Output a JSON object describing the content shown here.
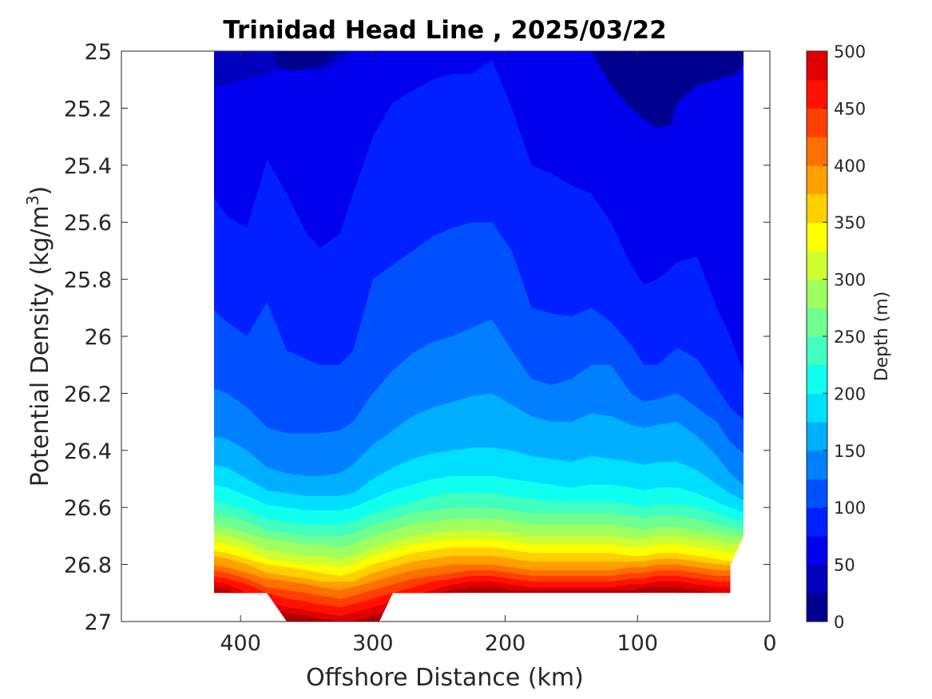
{
  "chart_data": {
    "type": "contour",
    "title": "Trinidad Head Line , 2025/03/22",
    "xlabel": "Offshore Distance (km)",
    "ylabel_main": "Potential Density (kg/m",
    "ylabel_sup": "3",
    "ylabel_end": ")",
    "colorbar_label": "Depth (m)",
    "x_ticks": [
      "400",
      "300",
      "200",
      "100",
      "0"
    ],
    "x_tick_values": [
      400,
      300,
      200,
      100,
      0
    ],
    "y_ticks": [
      "25",
      "25.2",
      "25.4",
      "25.6",
      "25.8",
      "26",
      "26.2",
      "26.4",
      "26.6",
      "26.8",
      "27"
    ],
    "y_tick_values": [
      25,
      25.2,
      25.4,
      25.6,
      25.8,
      26,
      26.2,
      26.4,
      26.6,
      26.8,
      27
    ],
    "x_range": [
      490,
      0
    ],
    "x_reversed": true,
    "y_range": [
      25,
      27
    ],
    "y_reversed": true,
    "data_x_extent": [
      420,
      20
    ],
    "colorbar_ticks": [
      "0",
      "50",
      "100",
      "150",
      "200",
      "250",
      "300",
      "350",
      "400",
      "450",
      "500"
    ],
    "colorbar_tick_values": [
      0,
      50,
      100,
      150,
      200,
      250,
      300,
      350,
      400,
      450,
      500
    ],
    "level_step": 25,
    "levels_colors": [
      "#00008f",
      "#0000bf",
      "#0000ef",
      "#0020ff",
      "#0050ff",
      "#0080ff",
      "#00afff",
      "#00dfff",
      "#10ffef",
      "#40ffbf",
      "#70ff8f",
      "#9fff60",
      "#cfff30",
      "#ffff00",
      "#ffcf00",
      "#ff9f00",
      "#ff7000",
      "#ff4000",
      "#ff1000",
      "#df0000",
      "#af0000"
    ],
    "x_stations": [
      420,
      410,
      395,
      380,
      365,
      350,
      340,
      325,
      315,
      300,
      285,
      270,
      255,
      240,
      225,
      210,
      195,
      180,
      165,
      150,
      135,
      120,
      105,
      95,
      85,
      70,
      55,
      40,
      30,
      20
    ],
    "isopycnal_depths": [
      {
        "x": 420,
        "depths": [
          25.13,
          25.5,
          25.9,
          26.18,
          26.35,
          26.45,
          26.52,
          26.58,
          26.62,
          26.66,
          26.69,
          26.72,
          26.75,
          26.77,
          26.8,
          26.82,
          26.84,
          26.86,
          26.88,
          26.9
        ]
      },
      {
        "x": 410,
        "depths": [
          25.12,
          25.58,
          25.95,
          26.2,
          26.36,
          26.46,
          26.53,
          26.59,
          26.63,
          26.67,
          26.7,
          26.73,
          26.76,
          26.78,
          26.81,
          26.83,
          26.85,
          26.87,
          26.89,
          26.91
        ]
      },
      {
        "x": 395,
        "depths": [
          25.1,
          25.62,
          26.0,
          26.25,
          26.4,
          26.5,
          26.56,
          26.61,
          26.65,
          26.69,
          26.72,
          26.75,
          26.78,
          26.8,
          26.83,
          26.85,
          26.87,
          26.9,
          26.92,
          26.94
        ]
      },
      {
        "x": 380,
        "depths": [
          25.08,
          25.38,
          25.88,
          26.32,
          26.46,
          26.54,
          26.59,
          26.64,
          26.68,
          26.71,
          26.75,
          26.78,
          26.8,
          26.83,
          26.85,
          26.88,
          26.9,
          26.93,
          26.95,
          26.98
        ]
      },
      {
        "x": 365,
        "depths": [
          25.04,
          25.5,
          26.05,
          26.34,
          26.48,
          26.55,
          26.6,
          26.65,
          26.69,
          26.72,
          26.76,
          26.79,
          26.81,
          26.84,
          26.86,
          26.89,
          26.92,
          26.95,
          26.97,
          27.0
        ]
      },
      {
        "x": 350,
        "depths": [
          25.06,
          25.64,
          26.08,
          26.34,
          26.49,
          26.56,
          26.61,
          26.66,
          26.7,
          26.73,
          26.77,
          26.8,
          26.82,
          26.85,
          26.87,
          26.9,
          26.93,
          26.96,
          26.98,
          27.0
        ]
      },
      {
        "x": 340,
        "depths": [
          25.07,
          25.69,
          26.1,
          26.34,
          26.49,
          26.56,
          26.61,
          26.66,
          26.7,
          26.73,
          26.77,
          26.8,
          26.83,
          26.86,
          26.88,
          26.91,
          26.94,
          26.97,
          26.99,
          27.0
        ]
      },
      {
        "x": 325,
        "depths": [
          25.04,
          25.64,
          26.1,
          26.33,
          26.48,
          26.56,
          26.61,
          26.66,
          26.7,
          26.74,
          26.78,
          26.81,
          26.84,
          26.86,
          26.89,
          26.92,
          26.95,
          26.98,
          27.0,
          27.0
        ]
      },
      {
        "x": 315,
        "depths": [
          25.0,
          25.5,
          26.05,
          26.3,
          26.45,
          26.55,
          26.6,
          26.65,
          26.69,
          26.73,
          26.77,
          26.8,
          26.83,
          26.86,
          26.88,
          26.91,
          26.94,
          26.97,
          27.0,
          27.0
        ]
      },
      {
        "x": 300,
        "depths": [
          25.0,
          25.3,
          25.8,
          26.2,
          26.38,
          26.5,
          26.57,
          26.62,
          26.66,
          26.7,
          26.74,
          26.77,
          26.8,
          26.83,
          26.86,
          26.89,
          26.92,
          26.95,
          26.98,
          27.0
        ]
      },
      {
        "x": 285,
        "depths": [
          25.0,
          25.18,
          25.75,
          26.12,
          26.33,
          26.46,
          26.54,
          26.6,
          26.64,
          26.68,
          26.72,
          26.75,
          26.78,
          26.81,
          26.84,
          26.87,
          26.9,
          26.93,
          26.96,
          26.98
        ]
      },
      {
        "x": 270,
        "depths": [
          25.0,
          25.14,
          25.7,
          26.06,
          26.28,
          26.43,
          26.52,
          26.58,
          26.62,
          26.66,
          26.7,
          26.73,
          26.76,
          26.79,
          26.82,
          26.85,
          26.88,
          26.91,
          26.93,
          26.95
        ]
      },
      {
        "x": 255,
        "depths": [
          25.0,
          25.1,
          25.65,
          26.02,
          26.25,
          26.41,
          26.5,
          26.56,
          26.61,
          26.65,
          26.69,
          26.72,
          26.75,
          26.78,
          26.81,
          26.84,
          26.86,
          26.89,
          26.9,
          26.92
        ]
      },
      {
        "x": 240,
        "depths": [
          25.0,
          25.08,
          25.62,
          26.0,
          26.23,
          26.4,
          26.49,
          26.55,
          26.6,
          26.64,
          26.68,
          26.71,
          26.74,
          26.77,
          26.8,
          26.83,
          26.85,
          26.87,
          26.89,
          26.9
        ]
      },
      {
        "x": 225,
        "depths": [
          25.0,
          25.08,
          25.6,
          25.97,
          26.21,
          26.39,
          26.49,
          26.55,
          26.6,
          26.64,
          26.68,
          26.71,
          26.74,
          26.77,
          26.8,
          26.82,
          26.84,
          26.86,
          26.88,
          26.9
        ]
      },
      {
        "x": 210,
        "depths": [
          25.0,
          25.03,
          25.6,
          25.94,
          26.2,
          26.39,
          26.49,
          26.55,
          26.6,
          26.64,
          26.68,
          26.71,
          26.74,
          26.77,
          26.8,
          26.82,
          26.84,
          26.86,
          26.88,
          26.9
        ]
      },
      {
        "x": 195,
        "depths": [
          25.0,
          25.2,
          25.7,
          26.05,
          26.24,
          26.4,
          26.5,
          26.56,
          26.61,
          26.65,
          26.69,
          26.72,
          26.75,
          26.78,
          26.81,
          26.83,
          26.85,
          26.87,
          26.89,
          26.9
        ]
      },
      {
        "x": 180,
        "depths": [
          25.0,
          25.4,
          25.9,
          26.15,
          26.28,
          26.42,
          26.51,
          26.57,
          26.62,
          26.66,
          26.7,
          26.73,
          26.76,
          26.79,
          26.82,
          26.84,
          26.86,
          26.88,
          26.89,
          26.9
        ]
      },
      {
        "x": 165,
        "depths": [
          25.0,
          25.43,
          25.92,
          26.17,
          26.3,
          26.43,
          26.52,
          26.58,
          26.62,
          26.66,
          26.7,
          26.73,
          26.76,
          26.79,
          26.82,
          26.84,
          26.86,
          26.88,
          26.89,
          26.9
        ]
      },
      {
        "x": 150,
        "depths": [
          25.0,
          25.47,
          25.93,
          26.15,
          26.3,
          26.44,
          26.53,
          26.58,
          26.62,
          26.66,
          26.7,
          26.73,
          26.76,
          26.79,
          26.82,
          26.84,
          26.86,
          26.88,
          26.89,
          26.9
        ]
      },
      {
        "x": 135,
        "depths": [
          25.0,
          25.5,
          25.9,
          26.1,
          26.27,
          26.42,
          26.52,
          26.58,
          26.62,
          26.66,
          26.7,
          26.73,
          26.76,
          26.79,
          26.82,
          26.84,
          26.86,
          26.88,
          26.89,
          26.9
        ]
      },
      {
        "x": 120,
        "depths": [
          25.0,
          25.6,
          25.95,
          26.1,
          26.28,
          26.43,
          26.52,
          26.58,
          26.62,
          26.66,
          26.7,
          26.73,
          26.76,
          26.79,
          26.82,
          26.84,
          26.86,
          26.88,
          26.89,
          26.9
        ]
      },
      {
        "x": 105,
        "depths": [
          25.0,
          25.75,
          26.03,
          26.2,
          26.31,
          26.44,
          26.53,
          26.59,
          26.63,
          26.67,
          26.71,
          26.74,
          26.77,
          26.79,
          26.81,
          26.83,
          26.85,
          26.87,
          26.89,
          26.9
        ]
      },
      {
        "x": 95,
        "depths": [
          25.0,
          25.82,
          26.1,
          26.23,
          26.32,
          26.45,
          26.54,
          26.6,
          26.64,
          26.68,
          26.71,
          26.74,
          26.77,
          26.79,
          26.81,
          26.83,
          26.85,
          26.87,
          26.88,
          26.9
        ]
      },
      {
        "x": 85,
        "depths": [
          25.0,
          25.8,
          26.1,
          26.22,
          26.31,
          26.44,
          26.53,
          26.59,
          26.63,
          26.67,
          26.7,
          26.73,
          26.76,
          26.78,
          26.8,
          26.82,
          26.84,
          26.86,
          26.88,
          26.89
        ]
      },
      {
        "x": 70,
        "depths": [
          25.0,
          25.74,
          26.04,
          26.2,
          26.3,
          26.44,
          26.53,
          26.59,
          26.63,
          26.67,
          26.7,
          26.73,
          26.76,
          26.78,
          26.8,
          26.82,
          26.84,
          26.86,
          26.88,
          26.9
        ]
      },
      {
        "x": 55,
        "depths": [
          25.0,
          25.72,
          26.08,
          26.25,
          26.35,
          26.47,
          26.55,
          26.6,
          26.64,
          26.68,
          26.71,
          26.74,
          26.77,
          26.79,
          26.81,
          26.83,
          26.85,
          26.87,
          26.89,
          26.9
        ]
      },
      {
        "x": 40,
        "depths": [
          25.0,
          25.9,
          26.18,
          26.3,
          26.42,
          26.52,
          26.58,
          26.62,
          26.66,
          26.69,
          26.72,
          26.75,
          26.78,
          26.8,
          26.82,
          26.84,
          26.86,
          26.88,
          26.9,
          26.9
        ]
      },
      {
        "x": 30,
        "depths": [
          25.0,
          26.0,
          26.25,
          26.37,
          26.48,
          26.55,
          26.6,
          26.64,
          26.67,
          26.7,
          26.73,
          26.76,
          26.79,
          26.8,
          26.82,
          26.84,
          26.86,
          26.88,
          26.9,
          26.9
        ]
      },
      {
        "x": 20,
        "depths": [
          25.0,
          26.15,
          26.3,
          26.42,
          26.53,
          26.58,
          26.62,
          26.65,
          26.68,
          26.7,
          26.72,
          26.74,
          26.76,
          26.78,
          26.8,
          26.82,
          26.84,
          26.86,
          26.88,
          26.9
        ]
      }
    ],
    "shallow_lobes": [
      {
        "x": [
          375,
          372,
          360,
          345,
          335,
          325
        ],
        "y": [
          25.0,
          25.06,
          25.07,
          25.06,
          25.04,
          25.0
        ]
      },
      {
        "x": [
          135,
          120,
          105,
          95,
          85,
          75,
          70,
          55,
          40,
          25,
          20,
          20
        ],
        "y": [
          25.0,
          25.12,
          25.2,
          25.24,
          25.27,
          25.26,
          25.18,
          25.12,
          25.1,
          25.08,
          25.05,
          25.0
        ]
      }
    ],
    "bottom_notch": [
      {
        "x": 420,
        "y": 26.9
      },
      {
        "x": 380,
        "y": 26.9
      },
      {
        "x": 365,
        "y": 27.0
      },
      {
        "x": 295,
        "y": 27.0
      },
      {
        "x": 285,
        "y": 26.9
      },
      {
        "x": 30,
        "y": 26.9
      },
      {
        "x": 30,
        "y": 26.8
      },
      {
        "x": 20,
        "y": 26.7
      }
    ]
  }
}
